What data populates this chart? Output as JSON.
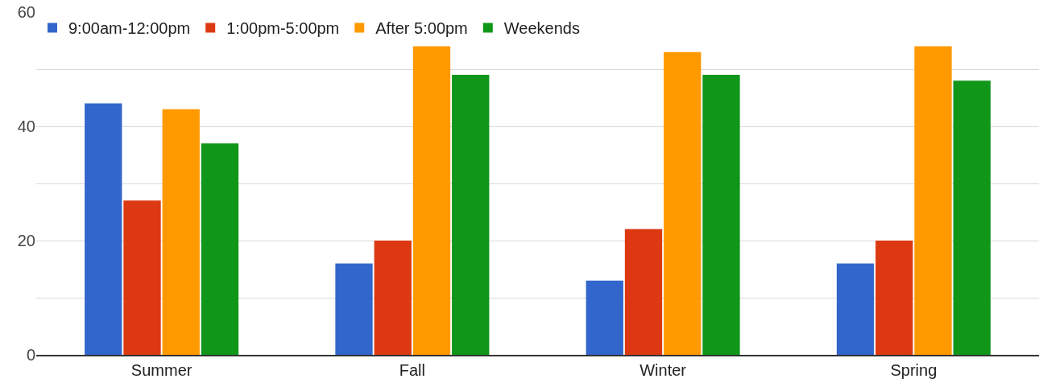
{
  "chart_data": {
    "type": "bar",
    "categories": [
      "Summer",
      "Fall",
      "Winter",
      "Spring"
    ],
    "series": [
      {
        "name": "9:00am-12:00pm",
        "color": "#3366cc",
        "values": [
          44,
          16,
          13,
          16
        ]
      },
      {
        "name": "1:00pm-5:00pm",
        "color": "#dc3912",
        "values": [
          27,
          20,
          22,
          20
        ]
      },
      {
        "name": "After 5:00pm",
        "color": "#ff9900",
        "values": [
          43,
          54,
          53,
          54
        ]
      },
      {
        "name": "Weekends",
        "color": "#109618",
        "values": [
          37,
          49,
          49,
          48
        ]
      }
    ],
    "ylim": [
      0,
      60
    ],
    "yticks": [
      0,
      {
        "value": 10,
        "label": null
      },
      20,
      {
        "value": 30,
        "label": null
      },
      40,
      {
        "value": 50,
        "label": null
      },
      60
    ],
    "grid": "y",
    "legend": "top left"
  }
}
